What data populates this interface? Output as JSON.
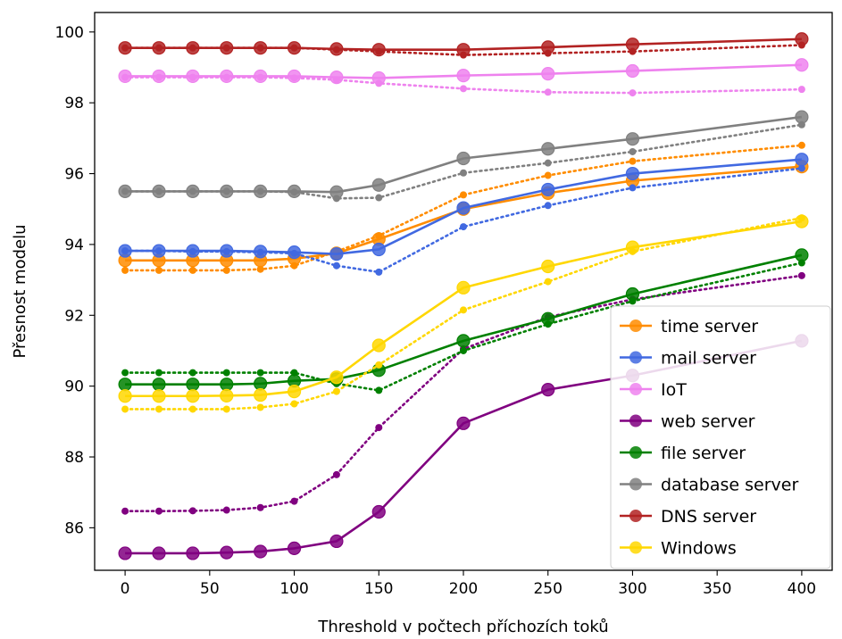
{
  "chart_data": {
    "type": "line",
    "xlabel": "Threshold v počtech příchozích toků",
    "ylabel": "Přesnost modelu",
    "xlim": [
      -18,
      418
    ],
    "ylim": [
      84.8,
      100.55
    ],
    "x_ticks": [
      0,
      50,
      100,
      150,
      200,
      250,
      300,
      350,
      400
    ],
    "y_ticks": [
      86,
      88,
      90,
      92,
      94,
      96,
      98,
      100
    ],
    "x": [
      0,
      20,
      40,
      60,
      80,
      100,
      125,
      150,
      200,
      250,
      300,
      400
    ],
    "legend_position": "lower right",
    "grid": false,
    "series": [
      {
        "name": "time server",
        "color": "#ff8c00",
        "values": [
          93.55,
          93.55,
          93.55,
          93.55,
          93.55,
          93.6,
          93.75,
          94.15,
          95.0,
          95.45,
          95.8,
          96.2
        ],
        "dotted_values": [
          93.27,
          93.27,
          93.27,
          93.27,
          93.3,
          93.4,
          93.8,
          94.25,
          95.4,
          95.95,
          96.35,
          96.8
        ]
      },
      {
        "name": "mail server",
        "color": "#4169e1",
        "values": [
          93.82,
          93.82,
          93.82,
          93.82,
          93.8,
          93.78,
          93.73,
          93.86,
          95.03,
          95.55,
          96.0,
          96.4
        ],
        "dotted_values": [
          93.82,
          93.82,
          93.8,
          93.8,
          93.78,
          93.75,
          93.4,
          93.22,
          94.5,
          95.1,
          95.6,
          96.15
        ]
      },
      {
        "name": "IoT",
        "color": "#ee82ee",
        "values": [
          98.75,
          98.75,
          98.75,
          98.75,
          98.75,
          98.75,
          98.72,
          98.7,
          98.77,
          98.82,
          98.9,
          99.07
        ],
        "dotted_values": [
          98.72,
          98.72,
          98.72,
          98.72,
          98.72,
          98.7,
          98.65,
          98.55,
          98.4,
          98.3,
          98.28,
          98.38
        ]
      },
      {
        "name": "web server",
        "color": "#800080",
        "values": [
          85.28,
          85.28,
          85.28,
          85.3,
          85.33,
          85.42,
          85.62,
          86.45,
          88.95,
          89.9,
          90.3,
          91.28
        ],
        "dotted_values": [
          86.47,
          86.47,
          86.48,
          86.5,
          86.57,
          86.75,
          87.5,
          88.83,
          91.05,
          91.95,
          92.45,
          93.12
        ]
      },
      {
        "name": "file server",
        "color": "#008000",
        "values": [
          90.05,
          90.05,
          90.05,
          90.05,
          90.07,
          90.15,
          90.2,
          90.45,
          91.28,
          91.9,
          92.6,
          93.7
        ],
        "dotted_values": [
          90.38,
          90.38,
          90.38,
          90.38,
          90.38,
          90.38,
          90.07,
          89.88,
          91.0,
          91.75,
          92.4,
          93.48
        ]
      },
      {
        "name": "database server",
        "color": "#808080",
        "values": [
          95.5,
          95.5,
          95.5,
          95.5,
          95.5,
          95.5,
          95.48,
          95.68,
          96.43,
          96.7,
          96.98,
          97.6
        ],
        "dotted_values": [
          95.5,
          95.5,
          95.5,
          95.5,
          95.5,
          95.48,
          95.3,
          95.32,
          96.02,
          96.3,
          96.62,
          97.38
        ]
      },
      {
        "name": "DNS server",
        "color": "#b22222",
        "values": [
          99.55,
          99.55,
          99.55,
          99.55,
          99.55,
          99.55,
          99.52,
          99.5,
          99.5,
          99.57,
          99.65,
          99.8
        ],
        "dotted_values": [
          99.55,
          99.55,
          99.55,
          99.55,
          99.55,
          99.55,
          99.5,
          99.45,
          99.35,
          99.4,
          99.45,
          99.63
        ]
      },
      {
        "name": "Windows",
        "color": "#ffd700",
        "values": [
          89.72,
          89.72,
          89.72,
          89.73,
          89.75,
          89.85,
          90.25,
          91.15,
          92.78,
          93.38,
          93.92,
          94.65
        ],
        "dotted_values": [
          89.35,
          89.35,
          89.35,
          89.35,
          89.4,
          89.5,
          89.85,
          90.6,
          92.15,
          92.95,
          93.8,
          94.75
        ]
      }
    ]
  }
}
